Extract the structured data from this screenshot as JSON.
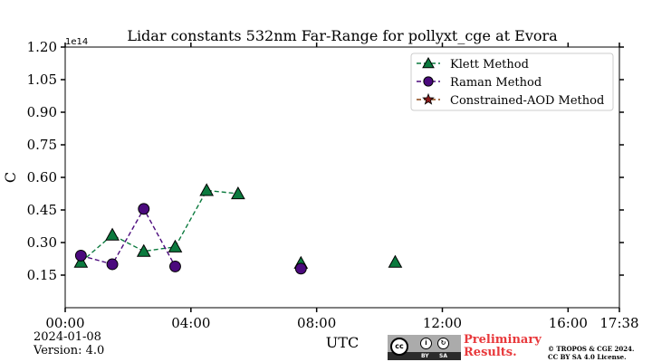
{
  "chart_data": {
    "type": "scatter",
    "title": "Lidar constants 532nm Far-Range for pollyxt_cge at Evora",
    "xlabel": "UTC",
    "ylabel": "C",
    "y_scale_label": "1e14",
    "xlim_hours": [
      0,
      17.633
    ],
    "ylim": [
      0,
      1.2
    ],
    "x_ticks": [
      {
        "hour": 0,
        "label": "00:00"
      },
      {
        "hour": 4,
        "label": "04:00"
      },
      {
        "hour": 8,
        "label": "08:00"
      },
      {
        "hour": 12,
        "label": "12:00"
      },
      {
        "hour": 16,
        "label": "16:00"
      },
      {
        "hour": 17.633,
        "label": "17:38"
      }
    ],
    "y_ticks": [
      {
        "value": 0.15,
        "label": "0.15"
      },
      {
        "value": 0.3,
        "label": "0.30"
      },
      {
        "value": 0.45,
        "label": "0.45"
      },
      {
        "value": 0.6,
        "label": "0.60"
      },
      {
        "value": 0.75,
        "label": "0.75"
      },
      {
        "value": 0.9,
        "label": "0.90"
      },
      {
        "value": 1.05,
        "label": "1.05"
      },
      {
        "value": 1.2,
        "label": "1.20"
      }
    ],
    "legend_position": "top-right",
    "series": [
      {
        "name": "Klett Method",
        "marker": "triangle",
        "color": "#0b7a3e",
        "line_color": "#0b7a3e",
        "segments": [
          [
            [
              0.5,
              0.21
            ],
            [
              1.5,
              0.335
            ],
            [
              2.5,
              0.26
            ],
            [
              3.5,
              0.28
            ],
            [
              4.5,
              0.54
            ],
            [
              5.5,
              0.525
            ]
          ],
          [
            [
              7.5,
              0.205
            ]
          ],
          [
            [
              10.5,
              0.21
            ]
          ]
        ]
      },
      {
        "name": "Raman Method",
        "marker": "circle",
        "color": "#4b0a7d",
        "line_color": "#4b0a7d",
        "segments": [
          [
            [
              0.5,
              0.24
            ],
            [
              1.5,
              0.2
            ],
            [
              2.5,
              0.455
            ],
            [
              3.5,
              0.19
            ]
          ],
          [
            [
              7.5,
              0.18
            ]
          ]
        ]
      },
      {
        "name": "Constrained-AOD Method",
        "marker": "star",
        "color": "#8b1a1a",
        "line_color": "#8b4513",
        "segments": []
      }
    ]
  },
  "footer": {
    "date": "2024-01-08",
    "version": "Version: 4.0",
    "license_cc": "cc",
    "license_by": "BY",
    "license_sa": "SA",
    "preliminary_line1": "Preliminary",
    "preliminary_line2": "Results.",
    "copyright_line1": "© TROPOS & CGE 2024.",
    "copyright_line2": "CC BY SA 4.0 License."
  }
}
